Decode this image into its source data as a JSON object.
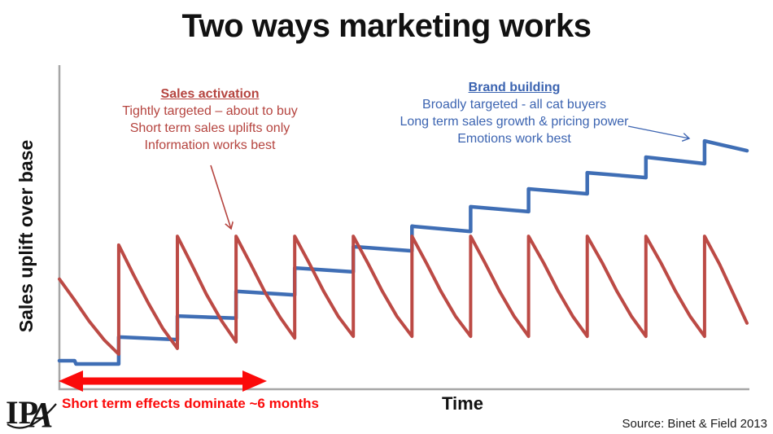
{
  "title": "Two ways marketing works",
  "source": "Source: Binet & Field 2013",
  "logo": {
    "text_ip": "IP",
    "text_a": "A"
  },
  "annotations": {
    "activation": {
      "heading": "Sales activation",
      "lines": [
        "Tightly targeted – about to buy",
        "Short term sales uplifts only",
        "Information works best"
      ]
    },
    "brand": {
      "heading": "Brand building",
      "lines": [
        "Broadly targeted - all cat buyers",
        "Long term sales growth & pricing power",
        "Emotions work best"
      ]
    },
    "short_term": "Short term effects dominate ~6 months"
  },
  "colors": {
    "title_text": "#111111",
    "activation_line": "#bc4a45",
    "activation_text": "#b5443f",
    "brand_line": "#3f6eb5",
    "brand_text": "#3c64b1",
    "bright_red": "#fb0a0a",
    "axis": "#a6a6a6",
    "logo_black": "#161616"
  },
  "chart_data": {
    "type": "line",
    "title": "Two ways marketing works",
    "xlabel": "Time",
    "ylabel": "Sales uplift over base",
    "grid": false,
    "axis_tick_labels": false,
    "legend_position": "none (series identified by colored text annotations)",
    "units": "x = % of time axis (~11 equal campaign cycles), y = % of plot height (uplift over base, unlabeled scale)",
    "x_axis_note": "Red double arrow spans first ~4 cycles: short term effects dominate ~6 months",
    "series": [
      {
        "name": "Brand building",
        "color": "#3f6eb5",
        "shape": "rising staircase: step up at each campaign burst, slight decay between steps",
        "points": [
          [
            0,
            8.8
          ],
          [
            2.2,
            8.8
          ],
          [
            2.4,
            7.8
          ],
          [
            8.6,
            7.8
          ],
          [
            8.6,
            16.1
          ],
          [
            17.1,
            15.3
          ],
          [
            17.1,
            22.6
          ],
          [
            25.6,
            21.9
          ],
          [
            25.6,
            30.2
          ],
          [
            34.1,
            29.1
          ],
          [
            34.1,
            37.4
          ],
          [
            42.6,
            36.2
          ],
          [
            42.6,
            44
          ],
          [
            51.1,
            42.7
          ],
          [
            51.1,
            50.3
          ],
          [
            59.6,
            48.7
          ],
          [
            59.6,
            56.3
          ],
          [
            68,
            54.8
          ],
          [
            68,
            61.8
          ],
          [
            76.5,
            60.3
          ],
          [
            76.5,
            66.8
          ],
          [
            85,
            65.3
          ],
          [
            85,
            71.6
          ],
          [
            93.5,
            69.6
          ],
          [
            93.5,
            76.6
          ],
          [
            99.65,
            73.6
          ]
        ]
      },
      {
        "name": "Sales activation",
        "color": "#bc4a45",
        "shape": "sawtooth: 11 vertical spikes decaying back toward base each cycle",
        "points": [
          [
            0,
            34
          ],
          [
            2.2,
            27.5
          ],
          [
            4.3,
            21
          ],
          [
            6.5,
            15.2
          ],
          [
            8.6,
            10.8
          ],
          [
            8.6,
            44.5
          ],
          [
            10.7,
            35.5
          ],
          [
            12.9,
            26.5
          ],
          [
            15,
            18.7
          ],
          [
            17.1,
            12.6
          ],
          [
            17.1,
            47.2
          ],
          [
            19.2,
            38.4
          ],
          [
            21.3,
            29.3
          ],
          [
            23.5,
            21.1
          ],
          [
            25.6,
            14.6
          ],
          [
            25.6,
            47.2
          ],
          [
            27.7,
            38.7
          ],
          [
            29.8,
            29.9
          ],
          [
            32,
            22.1
          ],
          [
            34.1,
            15.8
          ],
          [
            34.1,
            47.2
          ],
          [
            36.2,
            38.9
          ],
          [
            38.3,
            30.2
          ],
          [
            40.4,
            22.5
          ],
          [
            42.6,
            16.3
          ],
          [
            42.6,
            47.2
          ],
          [
            44.7,
            38.9
          ],
          [
            46.8,
            30.2
          ],
          [
            48.9,
            22.5
          ],
          [
            51.1,
            16.3
          ],
          [
            51.1,
            47.2
          ],
          [
            53.2,
            38.9
          ],
          [
            55.3,
            30.2
          ],
          [
            57.4,
            22.5
          ],
          [
            59.6,
            16.3
          ],
          [
            59.6,
            47.2
          ],
          [
            61.7,
            38.9
          ],
          [
            63.8,
            30.2
          ],
          [
            65.9,
            22.5
          ],
          [
            68,
            16.3
          ],
          [
            68,
            47.2
          ],
          [
            70.2,
            38.9
          ],
          [
            72.3,
            30.2
          ],
          [
            74.4,
            22.5
          ],
          [
            76.5,
            16.3
          ],
          [
            76.5,
            47.2
          ],
          [
            78.7,
            38.9
          ],
          [
            80.8,
            30.2
          ],
          [
            82.9,
            22.5
          ],
          [
            85,
            16.3
          ],
          [
            85,
            47.2
          ],
          [
            87.2,
            38.9
          ],
          [
            89.3,
            30.2
          ],
          [
            91.4,
            22.5
          ],
          [
            93.5,
            16.3
          ],
          [
            93.5,
            47.2
          ],
          [
            95.7,
            38.5
          ],
          [
            97.7,
            29.3
          ],
          [
            99.65,
            20.4
          ]
        ]
      }
    ]
  }
}
